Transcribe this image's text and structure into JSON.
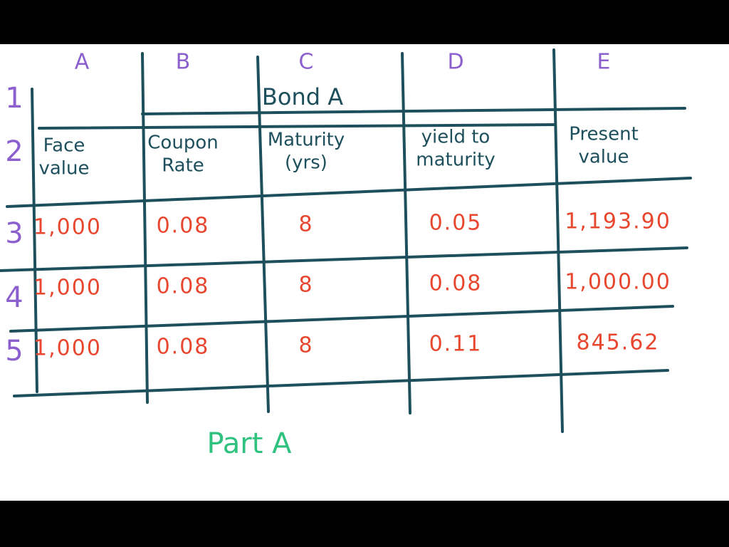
{
  "columns": [
    "A",
    "B",
    "C",
    "D",
    "E"
  ],
  "row_numbers": [
    "1",
    "2",
    "3",
    "4",
    "5"
  ],
  "table": {
    "title": "Bond A",
    "headers": [
      [
        "Face",
        "value"
      ],
      [
        "Coupon",
        "Rate"
      ],
      [
        "Maturity",
        "(yrs)"
      ],
      [
        "yield to",
        "maturity"
      ],
      [
        "Present",
        "value"
      ]
    ],
    "rows": [
      [
        "1,000",
        "0.08",
        "8",
        "0.05",
        "1,193.90"
      ],
      [
        "1,000",
        "0.08",
        "8",
        "0.08",
        "1,000.00"
      ],
      [
        "1,000",
        "0.08",
        "8",
        "0.11",
        "845.62"
      ]
    ]
  },
  "footer": "Part A"
}
